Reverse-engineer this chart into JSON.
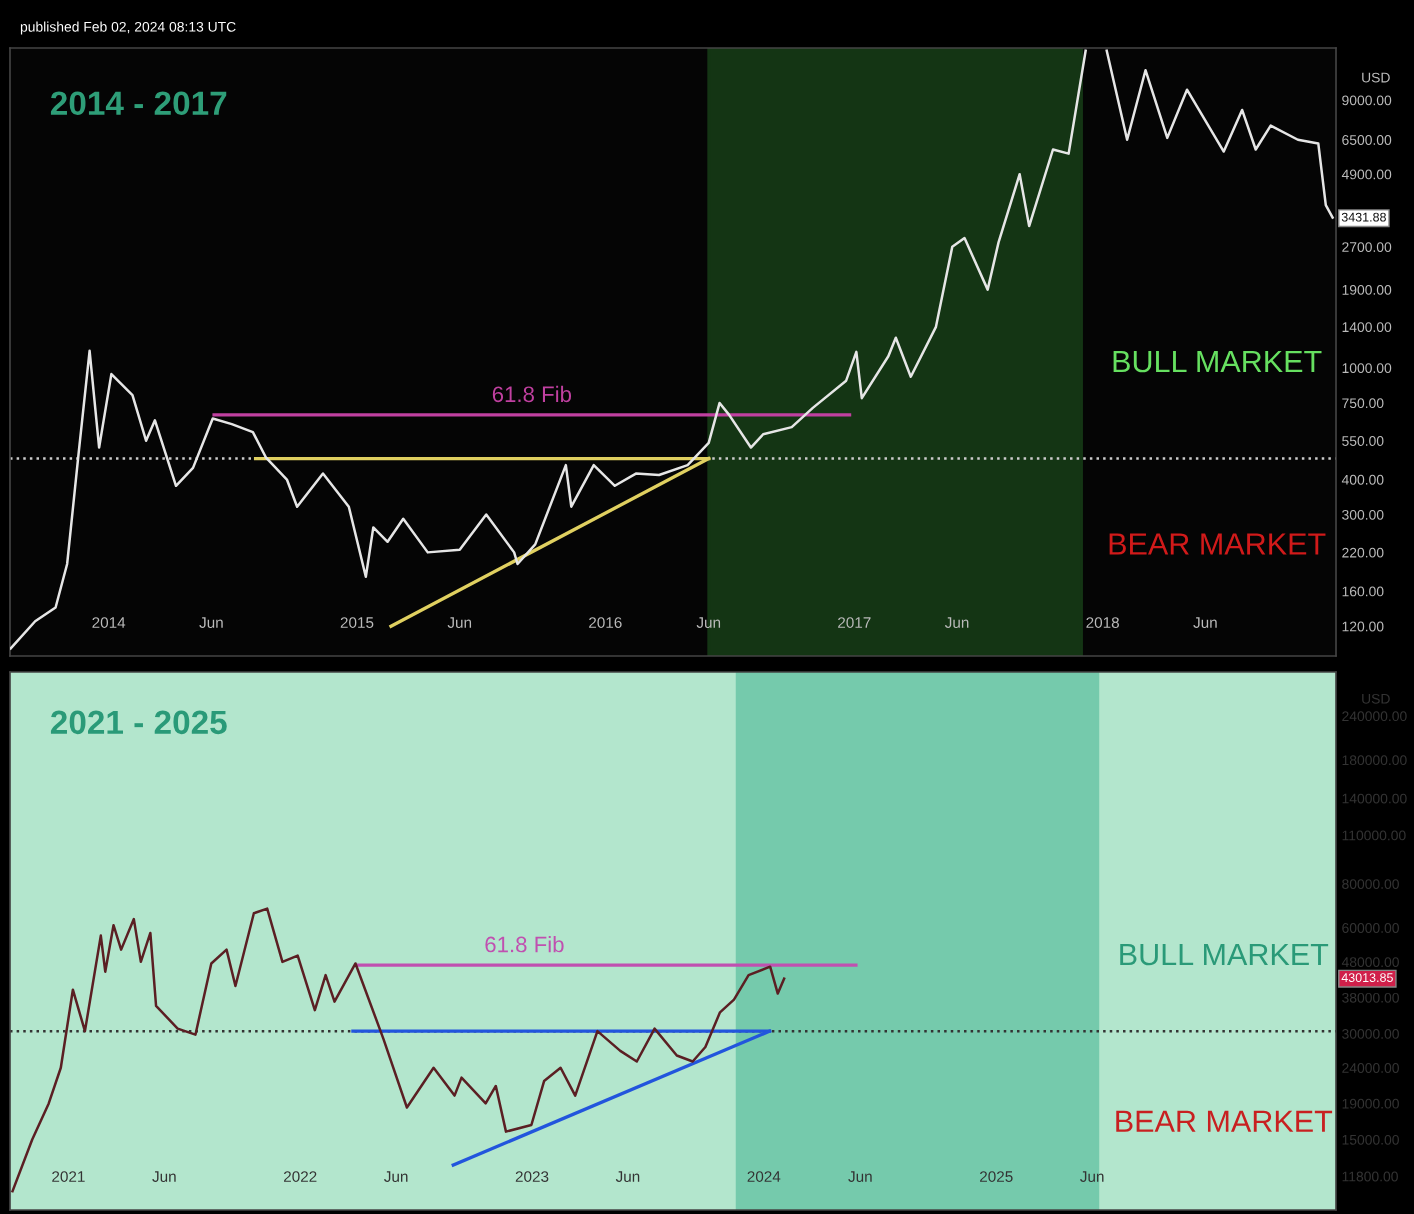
{
  "chart_data": [
    {
      "type": "line",
      "title": "2014 - 2017",
      "ylabel": "USD",
      "log": true,
      "xlim": [
        "2013-08-09",
        "2018-12-10"
      ],
      "xticks": [
        {
          "value": "2014-01",
          "label": "2014"
        },
        {
          "value": "2014-06",
          "label": "Jun"
        },
        {
          "value": "2015-01",
          "label": "2015"
        },
        {
          "value": "2015-06",
          "label": "Jun"
        },
        {
          "value": "2016-01",
          "label": "2016"
        },
        {
          "value": "2016-06",
          "label": "Jun"
        },
        {
          "value": "2017-01",
          "label": "2017"
        },
        {
          "value": "2017-06",
          "label": "Jun"
        },
        {
          "value": "2018-01",
          "label": "2018"
        },
        {
          "value": "2018-06",
          "label": "Jun"
        }
      ],
      "ylim": [
        94,
        13800
      ],
      "yticks": [
        {
          "value": 120,
          "label": "120.00"
        },
        {
          "value": 160,
          "label": "160.00"
        },
        {
          "value": 220,
          "label": "220.00"
        },
        {
          "value": 300,
          "label": "300.00"
        },
        {
          "value": 400,
          "label": "400.00"
        },
        {
          "value": 550,
          "label": "550.00"
        },
        {
          "value": 750,
          "label": "750.00"
        },
        {
          "value": 1000,
          "label": "1000.00"
        },
        {
          "value": 1400,
          "label": "1400.00"
        },
        {
          "value": 1900,
          "label": "1900.00"
        },
        {
          "value": 2700,
          "label": "2700.00"
        },
        {
          "value": 4900,
          "label": "4900.00"
        },
        {
          "value": 6500,
          "label": "6500.00"
        },
        {
          "value": 9000,
          "label": "9000.00"
        }
      ],
      "series": [
        {
          "color": "#e6e6e6",
          "x": [
            "2013-08-10",
            "2013-09-15",
            "2013-10-15",
            "2013-11-01",
            "2013-11-18",
            "2013-12-04",
            "2013-12-18",
            "2014-01-05",
            "2014-02-05",
            "2014-02-25",
            "2014-03-10",
            "2014-04-10",
            "2014-05-05",
            "2014-06-03",
            "2014-07-01",
            "2014-08-01",
            "2014-08-20",
            "2014-09-20",
            "2014-10-05",
            "2014-11-12",
            "2014-12-20",
            "2015-01-14",
            "2015-01-25",
            "2015-02-15",
            "2015-03-10",
            "2015-04-15",
            "2015-06-01",
            "2015-07-10",
            "2015-08-20",
            "2015-08-25",
            "2015-09-20",
            "2015-11-04",
            "2015-11-12",
            "2015-12-15",
            "2016-01-15",
            "2016-02-15",
            "2016-03-20",
            "2016-05-01",
            "2016-06-01",
            "2016-06-17",
            "2016-07-01",
            "2016-08-02",
            "2016-08-20",
            "2016-10-01",
            "2016-11-01",
            "2016-12-20",
            "2017-01-04",
            "2017-01-12",
            "2017-02-20",
            "2017-03-03",
            "2017-03-25",
            "2017-05-01",
            "2017-05-25",
            "2017-06-12",
            "2017-07-16",
            "2017-08-01",
            "2017-09-01",
            "2017-09-15",
            "2017-10-20",
            "2017-11-12",
            "2017-12-07",
            "2017-12-20",
            "2018-01-07",
            "2018-02-06",
            "2018-03-05",
            "2018-04-06",
            "2018-05-05",
            "2018-06-28",
            "2018-07-25",
            "2018-08-14",
            "2018-09-05",
            "2018-10-15",
            "2018-11-14",
            "2018-11-25",
            "2018-12-05"
          ],
          "values": [
            100,
            125,
            140,
            200,
            500,
            1150,
            520,
            950,
            800,
            550,
            650,
            380,
            440,
            660,
            630,
            590,
            480,
            400,
            320,
            420,
            320,
            180,
            270,
            240,
            290,
            220,
            225,
            300,
            220,
            200,
            235,
            450,
            320,
            450,
            380,
            420,
            415,
            450,
            540,
            750,
            680,
            520,
            580,
            615,
            720,
            900,
            1140,
            780,
            1100,
            1280,
            930,
            1400,
            2700,
            2900,
            1900,
            2800,
            4900,
            3200,
            6000,
            5800,
            13500,
            null,
            13500,
            6500,
            11500,
            6600,
            9800,
            5900,
            8300,
            6000,
            7300,
            6500,
            6300,
            3800,
            3431.88
          ]
        },
        {
          "color": "#c040a0",
          "x": [
            "2014-06-05",
            "2016-12-25"
          ],
          "values": [
            680,
            680
          ]
        },
        {
          "color": "#e0d060",
          "x": [
            "2014-08-05",
            "2016-06-01"
          ],
          "values": [
            475,
            475
          ]
        },
        {
          "color": "#e0d060",
          "x": [
            "2015-02-20",
            "2016-06-01"
          ],
          "values": [
            120,
            475
          ]
        }
      ],
      "ref_lines": [
        {
          "axis": "y",
          "value": 475,
          "color": "#cccccc",
          "line_style": "dotted"
        }
      ],
      "bands": [
        {
          "axis": "x",
          "from": "2016-06-01",
          "to": "2017-12-01",
          "color": "#1b4a1b"
        }
      ],
      "annotations": [
        "published Feb 02, 2024 08:13 UTC",
        {
          "text": "61.8 Fib",
          "x": "2015-09-15",
          "y": 680
        },
        "BULL MARKET",
        "BEAR MARKET",
        "3431.88"
      ]
    },
    {
      "type": "line",
      "title": "2021 - 2025",
      "ylabel": "USD",
      "log": true,
      "xlim": [
        "2020-10-01",
        "2026-06-20"
      ],
      "xticks": [
        {
          "value": "2021-01",
          "label": "2021"
        },
        {
          "value": "2021-06",
          "label": "Jun"
        },
        {
          "value": "2022-01",
          "label": "2022"
        },
        {
          "value": "2022-06",
          "label": "Jun"
        },
        {
          "value": "2023-01",
          "label": "2023"
        },
        {
          "value": "2023-06",
          "label": "Jun"
        },
        {
          "value": "2024-01",
          "label": "2024"
        },
        {
          "value": "2024-06",
          "label": "Jun"
        },
        {
          "value": "2025-01",
          "label": "2025"
        },
        {
          "value": "2025-06",
          "label": "Jun"
        }
      ],
      "ylim": [
        9460,
        320000
      ],
      "yticks": [
        {
          "value": 11800,
          "label": "11800.00"
        },
        {
          "value": 15000,
          "label": "15000.00"
        },
        {
          "value": 19000,
          "label": "19000.00"
        },
        {
          "value": 24000,
          "label": "24000.00"
        },
        {
          "value": 30000,
          "label": "30000.00"
        },
        {
          "value": 38000,
          "label": "38000.00"
        },
        {
          "value": 48000,
          "label": "48000.00"
        },
        {
          "value": 60000,
          "label": "60000.00"
        },
        {
          "value": 80000,
          "label": "80000.00"
        },
        {
          "value": 110000,
          "label": "110000.00"
        },
        {
          "value": 140000,
          "label": "140000.00"
        },
        {
          "value": 180000,
          "label": "180000.00"
        },
        {
          "value": 240000,
          "label": "240000.00"
        }
      ],
      "series": [
        {
          "color": "#5b1f23",
          "x": [
            "2020-10-05",
            "2020-11-05",
            "2020-12-01",
            "2020-12-20",
            "2021-01-08",
            "2021-01-27",
            "2021-02-21",
            "2021-02-28",
            "2021-03-13",
            "2021-03-25",
            "2021-04-14",
            "2021-04-25",
            "2021-05-10",
            "2021-05-19",
            "2021-06-22",
            "2021-07-20",
            "2021-08-14",
            "2021-09-07",
            "2021-09-21",
            "2021-10-20",
            "2021-11-10",
            "2021-12-04",
            "2021-12-28",
            "2022-01-24",
            "2022-02-10",
            "2022-02-24",
            "2022-03-29",
            "2022-05-12",
            "2022-06-18",
            "2022-07-30",
            "2022-09-01",
            "2022-09-12",
            "2022-10-20",
            "2022-11-05",
            "2022-11-21",
            "2022-12-31",
            "2023-01-20",
            "2023-02-15",
            "2023-03-10",
            "2023-04-14",
            "2023-05-20",
            "2023-06-15",
            "2023-07-13",
            "2023-08-17",
            "2023-09-11",
            "2023-10-01",
            "2023-10-24",
            "2023-11-15",
            "2023-12-08",
            "2024-01-11",
            "2024-01-23",
            "2024-02-02"
          ],
          "values": [
            10700,
            15000,
            19000,
            24000,
            40000,
            30500,
            57000,
            45000,
            61000,
            52000,
            63500,
            48000,
            58000,
            36000,
            31000,
            29800,
            47500,
            52000,
            41000,
            66000,
            68000,
            48000,
            50000,
            35000,
            44000,
            37000,
            47500,
            29000,
            18500,
            24000,
            20000,
            22500,
            19000,
            21300,
            15800,
            16500,
            22000,
            24000,
            20000,
            30500,
            26800,
            25000,
            31000,
            26000,
            25000,
            27500,
            34500,
            37500,
            44000,
            46500,
            39000,
            43013.85
          ]
        },
        {
          "color": "#c050b0",
          "x": [
            "2022-04-01",
            "2024-05-25"
          ],
          "values": [
            47000,
            47000
          ]
        },
        {
          "color": "#2255dd",
          "x": [
            "2022-03-25",
            "2024-01-10"
          ],
          "values": [
            30500,
            30500
          ]
        },
        {
          "color": "#2255dd",
          "x": [
            "2022-08-30",
            "2024-01-10"
          ],
          "values": [
            12700,
            30500
          ]
        }
      ],
      "ref_lines": [
        {
          "axis": "y",
          "value": 30500,
          "color": "#333333",
          "line_style": "dotted"
        }
      ],
      "bands": [
        {
          "axis": "x",
          "from": "2023-11-20",
          "to": "2025-06-10",
          "color": "#5bbf9f"
        }
      ],
      "annotations": [
        {
          "text": "61.8 Fib",
          "x": "2022-12-20",
          "y": 47000
        },
        "BULL MARKET",
        "BEAR MARKET",
        "43013.85"
      ]
    }
  ]
}
